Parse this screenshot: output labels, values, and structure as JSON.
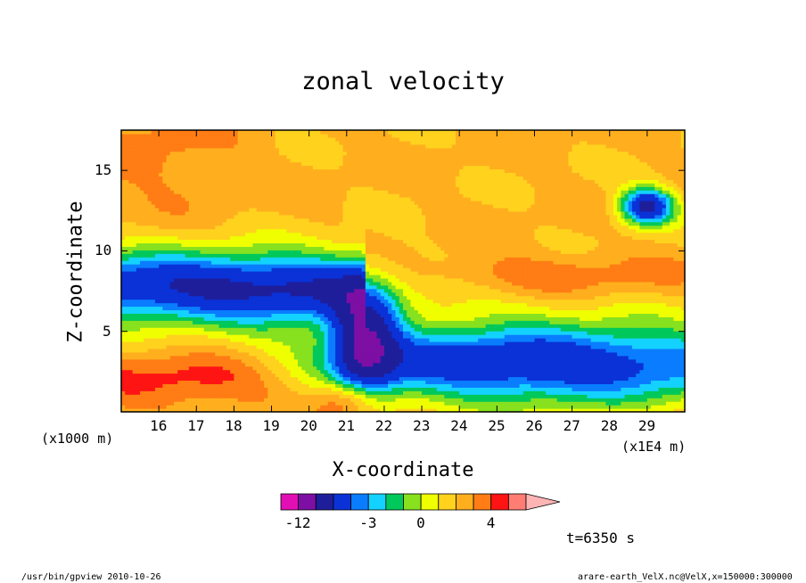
{
  "chart_data": {
    "type": "heatmap",
    "title": "zonal velocity",
    "xlabel": "X-coordinate",
    "ylabel": "Z-coordinate",
    "x_scale_label": "(x1E4 m)",
    "y_scale_label": "(x1000 m)",
    "x_ticks": [
      "16",
      "17",
      "18",
      "19",
      "20",
      "21",
      "22",
      "23",
      "24",
      "25",
      "26",
      "27",
      "28",
      "29"
    ],
    "y_ticks": [
      "5",
      "10",
      "15"
    ],
    "xlim": [
      15,
      30
    ],
    "ylim": [
      0,
      17.5
    ],
    "colorbar": {
      "labels": [
        "-12",
        "-3",
        "0",
        "4"
      ],
      "label_values": [
        -12,
        -3,
        0,
        4
      ],
      "levels": [
        -15,
        -12,
        -9,
        -6,
        -4,
        -3,
        -2,
        -1,
        0,
        1,
        2,
        3,
        4,
        6,
        9
      ],
      "colors": [
        "#e10fb4",
        "#7d0fa5",
        "#1e1e9b",
        "#0a32d7",
        "#0a7dff",
        "#14d2ff",
        "#00c85a",
        "#87e11e",
        "#f0ff00",
        "#ffd21e",
        "#ffaf1e",
        "#ff7d14",
        "#ff1414",
        "#ff7d73",
        "#ffb4b4"
      ]
    },
    "annotation": "t=6350 s"
  },
  "footer": {
    "left": "/usr/bin/gpview  2010-10-26",
    "right": "arare-earth_VelX.nc@VelX,x=150000:300000"
  }
}
